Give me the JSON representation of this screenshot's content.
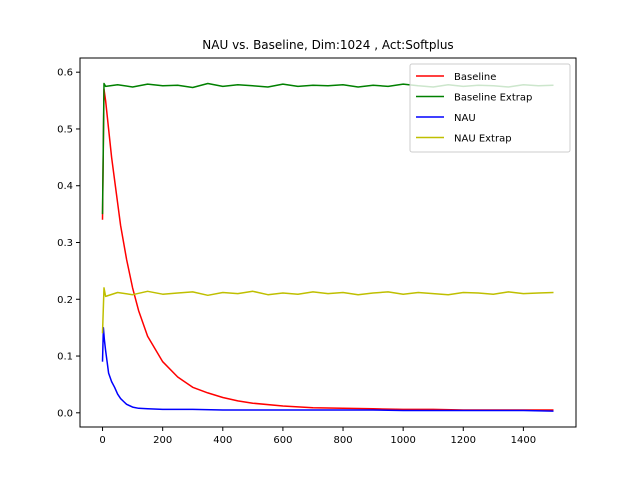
{
  "chart_data": {
    "type": "line",
    "title": "NAU vs. Baseline, Dim:1024 , Act:Softplus",
    "xlabel": "",
    "ylabel": "",
    "xlim": [
      -75,
      1575
    ],
    "ylim": [
      -0.025,
      0.625
    ],
    "xticks": [
      0,
      200,
      400,
      600,
      800,
      1000,
      1200,
      1400
    ],
    "yticks": [
      0.0,
      0.1,
      0.2,
      0.3,
      0.4,
      0.5,
      0.6
    ],
    "ytick_labels": [
      "0.0",
      "0.1",
      "0.2",
      "0.3",
      "0.4",
      "0.5",
      "0.6"
    ],
    "grid": false,
    "legend_position": "top-right",
    "series": [
      {
        "name": "Baseline",
        "color": "#ff0000",
        "x": [
          0,
          5,
          10,
          20,
          30,
          40,
          50,
          60,
          80,
          100,
          120,
          150,
          200,
          250,
          300,
          350,
          400,
          450,
          500,
          600,
          700,
          800,
          900,
          1000,
          1100,
          1200,
          1300,
          1400,
          1500
        ],
        "y": [
          0.34,
          0.57,
          0.55,
          0.5,
          0.45,
          0.41,
          0.37,
          0.33,
          0.27,
          0.22,
          0.18,
          0.135,
          0.09,
          0.063,
          0.045,
          0.035,
          0.027,
          0.021,
          0.017,
          0.012,
          0.009,
          0.008,
          0.007,
          0.006,
          0.006,
          0.005,
          0.005,
          0.005,
          0.005
        ]
      },
      {
        "name": "Baseline Extrap",
        "color": "#008000",
        "x": [
          0,
          5,
          10,
          50,
          100,
          150,
          200,
          250,
          300,
          350,
          400,
          450,
          500,
          550,
          600,
          650,
          700,
          750,
          800,
          850,
          900,
          950,
          1000,
          1050,
          1100,
          1150,
          1200,
          1250,
          1300,
          1350,
          1400,
          1450,
          1500
        ],
        "y": [
          0.35,
          0.58,
          0.575,
          0.578,
          0.574,
          0.579,
          0.576,
          0.577,
          0.573,
          0.58,
          0.575,
          0.578,
          0.576,
          0.574,
          0.579,
          0.575,
          0.577,
          0.576,
          0.578,
          0.574,
          0.577,
          0.575,
          0.579,
          0.576,
          0.574,
          0.578,
          0.575,
          0.577,
          0.576,
          0.574,
          0.578,
          0.576,
          0.577
        ]
      },
      {
        "name": "NAU",
        "color": "#0000ff",
        "x": [
          0,
          3,
          6,
          10,
          15,
          20,
          30,
          40,
          50,
          60,
          70,
          80,
          100,
          120,
          150,
          200,
          300,
          400,
          500,
          600,
          700,
          800,
          900,
          1000,
          1100,
          1200,
          1300,
          1400,
          1500
        ],
        "y": [
          0.09,
          0.15,
          0.13,
          0.11,
          0.09,
          0.07,
          0.055,
          0.045,
          0.033,
          0.025,
          0.02,
          0.015,
          0.01,
          0.008,
          0.007,
          0.006,
          0.006,
          0.005,
          0.005,
          0.005,
          0.005,
          0.005,
          0.005,
          0.004,
          0.004,
          0.004,
          0.004,
          0.004,
          0.003
        ]
      },
      {
        "name": "NAU Extrap",
        "color": "#bfbf00",
        "x": [
          0,
          5,
          10,
          50,
          100,
          150,
          200,
          250,
          300,
          350,
          400,
          450,
          500,
          550,
          600,
          650,
          700,
          750,
          800,
          850,
          900,
          950,
          1000,
          1050,
          1100,
          1150,
          1200,
          1250,
          1300,
          1350,
          1400,
          1450,
          1500
        ],
        "y": [
          0.14,
          0.22,
          0.205,
          0.212,
          0.208,
          0.214,
          0.209,
          0.211,
          0.213,
          0.207,
          0.212,
          0.21,
          0.214,
          0.208,
          0.211,
          0.209,
          0.213,
          0.21,
          0.212,
          0.208,
          0.211,
          0.213,
          0.209,
          0.212,
          0.21,
          0.208,
          0.212,
          0.211,
          0.209,
          0.213,
          0.21,
          0.211,
          0.212
        ]
      }
    ]
  }
}
